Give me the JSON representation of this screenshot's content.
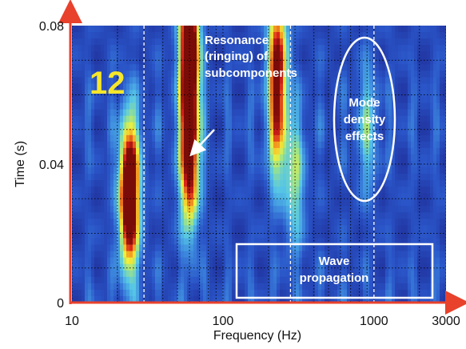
{
  "chart_data": {
    "type": "heatmap",
    "title": "",
    "xlabel": "Frequency (Hz)",
    "ylabel": "Time (s)",
    "xscale": "log",
    "xlim": [
      10,
      3000
    ],
    "ylim": [
      0,
      0.08
    ],
    "xticks": [
      {
        "value": 10,
        "label": "10"
      },
      {
        "value": 100,
        "label": "100"
      },
      {
        "value": 1000,
        "label": "1000"
      },
      {
        "value": 3000,
        "label": "3000"
      }
    ],
    "yticks": [
      {
        "value": 0,
        "label": "0"
      },
      {
        "value": 0.04,
        "label": "0.04"
      },
      {
        "value": 0.08,
        "label": "0.08"
      }
    ],
    "grid": true,
    "colormap": [
      "#1f2f9a",
      "#2a55c8",
      "#3f8fe0",
      "#56c6e6",
      "#9be38b",
      "#f2f03a",
      "#f4a020",
      "#d7201a",
      "#7a0c08"
    ],
    "hotspots": [
      {
        "freq": 24,
        "time": 0.026,
        "intensity": 0.85
      },
      {
        "freq": 24,
        "time": 0.038,
        "intensity": 0.65
      },
      {
        "freq": 60,
        "time": 0.078,
        "intensity": 1.0
      },
      {
        "freq": 60,
        "time": 0.06,
        "intensity": 0.7
      },
      {
        "freq": 60,
        "time": 0.038,
        "intensity": 0.85
      },
      {
        "freq": 230,
        "time": 0.072,
        "intensity": 0.8
      },
      {
        "freq": 230,
        "time": 0.05,
        "intensity": 0.55
      },
      {
        "freq": 300,
        "time": 0.035,
        "intensity": 0.4
      },
      {
        "freq": 900,
        "time": 0.05,
        "intensity": 0.3
      }
    ],
    "dashed_lines_hz": [
      30,
      280,
      1000
    ],
    "annotations": {
      "panel_number": "12",
      "resonance_lines": [
        "Resonance",
        "(ringing) of",
        "subcomponents"
      ],
      "mode_lines": [
        "Mode",
        "density",
        "effects"
      ],
      "wave_lines": [
        "Wave",
        "propagation"
      ]
    },
    "accent_colors": {
      "axis": "#e8412c",
      "annotation_text": "#ffffff",
      "panel_number": "#f5e62a"
    }
  }
}
